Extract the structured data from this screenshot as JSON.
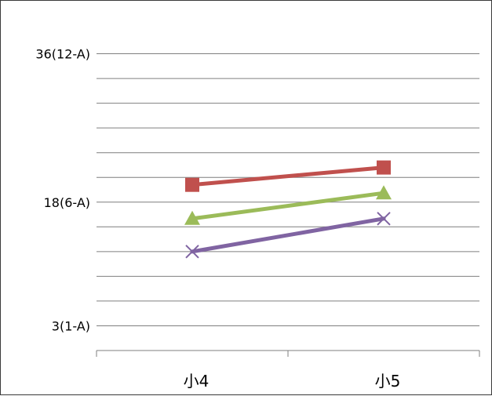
{
  "chart_data": {
    "type": "line",
    "title": "",
    "xlabel": "",
    "ylabel": "",
    "categories": [
      "小4",
      "小5"
    ],
    "y_range": [
      0,
      39
    ],
    "y_grid_step": 3,
    "y_tick_labels": [
      {
        "value": 36,
        "label": "36(12-A)"
      },
      {
        "value": 18,
        "label": "18(6-A)"
      },
      {
        "value": 3,
        "label": "3(1-A)"
      }
    ],
    "grid": true,
    "legend": "none",
    "series": [
      {
        "color": "#c0504d",
        "marker": "square",
        "values": [
          20.1,
          22.2
        ]
      },
      {
        "color": "#9bbb59",
        "marker": "triangle",
        "values": [
          16.0,
          19.1
        ]
      },
      {
        "color": "#8064a2",
        "marker": "x",
        "values": [
          12.0,
          16.0
        ]
      }
    ]
  }
}
